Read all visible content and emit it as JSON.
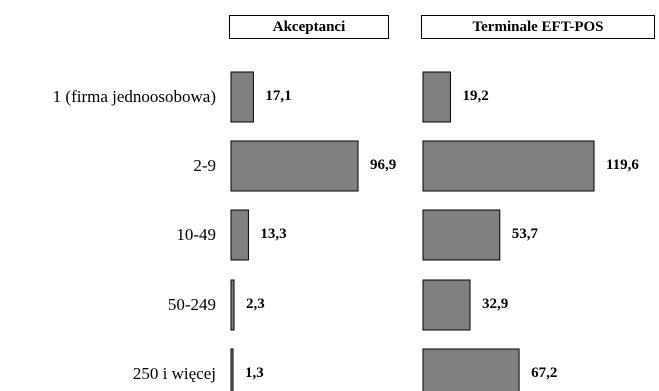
{
  "chart_data": {
    "type": "bar",
    "orientation": "horizontal",
    "categories": [
      "1 (firma jednoosobowa)",
      "2-9",
      "10-49",
      "50-249",
      "250 i więcej"
    ],
    "series": [
      {
        "name": "Akceptanci",
        "values": [
          17.1,
          96.9,
          13.3,
          2.3,
          1.3
        ],
        "value_labels": [
          "17,1",
          "96,9",
          "13,3",
          "2,3",
          "1,3"
        ]
      },
      {
        "name": "Terminale EFT-POS",
        "values": [
          19.2,
          119.6,
          53.7,
          32.9,
          67.2
        ],
        "value_labels": [
          "19,2",
          "119,6",
          "53,7",
          "32,9",
          "67,2"
        ]
      }
    ],
    "bar_color": "#808080",
    "bar_border_color": "#000000",
    "legend": "panel-headers",
    "grid": false
  }
}
